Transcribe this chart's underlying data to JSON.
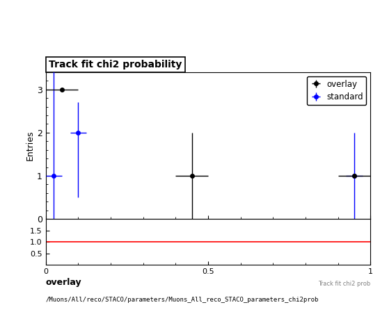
{
  "title": "Track fit chi2 probability",
  "ylabel_main": "Entries",
  "xlim": [
    0,
    1
  ],
  "ylim_main": [
    0,
    3.4
  ],
  "ylim_ratio": [
    0.0,
    2.0
  ],
  "ratio_yticks": [
    0.5,
    1.0,
    1.5
  ],
  "overlay": {
    "x": [
      0.05,
      0.45,
      0.95
    ],
    "y": [
      3,
      1,
      1
    ],
    "xerr": [
      0.05,
      0.05,
      0.05
    ],
    "yerr_lo": [
      0.0,
      1.0,
      0.0
    ],
    "yerr_hi": [
      0.0,
      1.0,
      0.0
    ],
    "color": "black",
    "label": "overlay"
  },
  "standard": {
    "x": [
      0.025,
      0.1,
      0.95
    ],
    "y": [
      1,
      2,
      1
    ],
    "xerr": [
      0.025,
      0.025,
      0.025
    ],
    "yerr_lo": [
      1.0,
      1.5,
      1.0
    ],
    "yerr_hi": [
      2.5,
      0.7,
      1.0
    ],
    "color": "blue",
    "label": "standard"
  },
  "ratio_line_y": 1.0,
  "ratio_line_color": "red",
  "footnote_line1": "overlay",
  "footnote_line2": "/Muons/All/reco/STACO/parameters/Muons_All_reco_STACO_parameters_chi2prob",
  "background_color": "white"
}
